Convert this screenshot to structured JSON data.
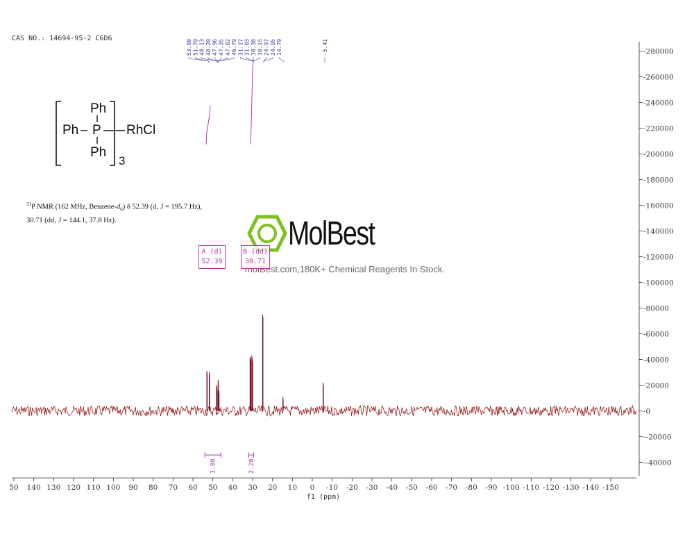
{
  "cas_label": "CAS NO.: 14694-95-2 C6D6",
  "description": {
    "nucleus_sup": "31",
    "line1_a": "P NMR (162 MHz, Benzene-",
    "line1_solvent": "d",
    "line1_solvent_sub": "6",
    "line1_b": ") δ 52.39 (d, ",
    "line1_j": "J",
    "line1_c": " = 195.7 Hz),",
    "line2_a": "30.71 (dd, ",
    "line2_j": "J",
    "line2_b": " = 144.1, 37.8 Hz)."
  },
  "structure": {
    "top_ph": "Ph",
    "left_ph": "Ph",
    "phosphorus": "P",
    "bottom_ph": "Ph",
    "metal_label": "RhCl",
    "subscript": "3"
  },
  "watermark": {
    "brand": "MolBest",
    "tagline": "molBest.com,180K+ Chemical Reagents In Stock."
  },
  "multiplets": [
    {
      "letter": "A (d)",
      "shift": "52.39"
    },
    {
      "letter": "B (dd)",
      "shift": "30.71"
    }
  ],
  "colors": {
    "spectrum": "#8b0000",
    "peak_labels": "#3b3b9a",
    "integral": "#b03aa8",
    "axis": "#333333"
  },
  "chart_data": {
    "type": "line",
    "xlabel": "f1 (ppm)",
    "x_ticks": [
      "50",
      "140",
      "130",
      "120",
      "110",
      "100",
      "90",
      "80",
      "70",
      "60",
      "50",
      "40",
      "30",
      "20",
      "10",
      "0",
      "-10",
      "-20",
      "-30",
      "-40",
      "-50",
      "-60",
      "-70",
      "-80",
      "-90",
      "-100",
      "-110",
      "-120",
      "-130",
      "-140",
      "-150"
    ],
    "xlim": [
      150,
      -158
    ],
    "y_ticks": [
      "280000",
      "260000",
      "240000",
      "220000",
      "200000",
      "180000",
      "160000",
      "140000",
      "120000",
      "100000",
      "80000",
      "60000",
      "40000",
      "20000",
      "0",
      "-20000",
      "-40000"
    ],
    "ylim": [
      -50000,
      285000
    ],
    "peak_labels": [
      "53.00",
      "51.79",
      "48.13",
      "48.20",
      "47.96",
      "47.35",
      "47.02",
      "46.79",
      "31.27",
      "31.03",
      "30.38",
      "30.15",
      "24.97",
      "24.95",
      "14.79",
      "-5.41"
    ],
    "peaks": [
      {
        "ppm": 53.0,
        "height": 31000
      },
      {
        "ppm": 51.79,
        "height": 30000
      },
      {
        "ppm": 48.13,
        "height": 20000
      },
      {
        "ppm": 47.96,
        "height": 18000
      },
      {
        "ppm": 47.35,
        "height": 24000
      },
      {
        "ppm": 47.02,
        "height": 16000
      },
      {
        "ppm": 31.27,
        "height": 41000
      },
      {
        "ppm": 31.03,
        "height": 42000
      },
      {
        "ppm": 30.38,
        "height": 43000
      },
      {
        "ppm": 30.15,
        "height": 40000
      },
      {
        "ppm": 24.97,
        "height": 75000
      },
      {
        "ppm": 14.79,
        "height": 11000
      },
      {
        "ppm": -5.41,
        "height": 22000
      }
    ],
    "integrals": [
      {
        "from": 54.0,
        "to": 46.0,
        "value": "1.00"
      },
      {
        "from": 32.0,
        "to": 29.5,
        "value": "2.28"
      }
    ]
  }
}
